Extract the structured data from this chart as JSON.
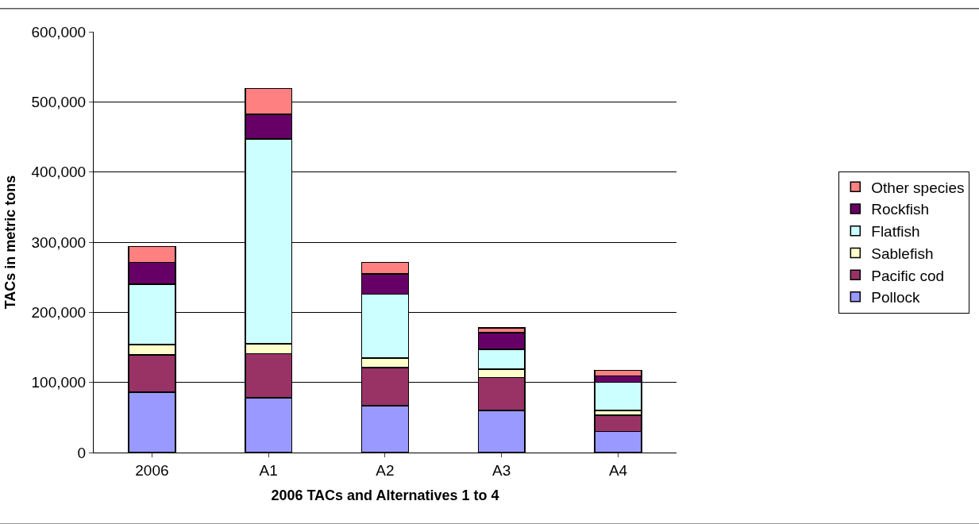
{
  "chart_data": {
    "type": "bar",
    "stacked": true,
    "xlabel": "2006 TACs and Alternatives 1 to 4",
    "ylabel": "TACs in metric tons",
    "categories": [
      "2006",
      "A1",
      "A2",
      "A3",
      "A4"
    ],
    "series": [
      {
        "name": "Pollock",
        "color": "#9999ff",
        "values": [
          86000,
          78000,
          67000,
          60000,
          30000
        ]
      },
      {
        "name": "Pacific cod",
        "color": "#993366",
        "values": [
          53000,
          63000,
          54000,
          47000,
          23000
        ]
      },
      {
        "name": "Sablefish",
        "color": "#ffffcc",
        "values": [
          15000,
          14000,
          14000,
          12000,
          7000
        ]
      },
      {
        "name": "Flatfish",
        "color": "#ccffff",
        "values": [
          86000,
          292000,
          91000,
          28000,
          40000
        ]
      },
      {
        "name": "Rockfish",
        "color": "#660066",
        "values": [
          31000,
          35000,
          29000,
          24000,
          9000
        ]
      },
      {
        "name": "Other species",
        "color": "#ff8080",
        "values": [
          23000,
          37000,
          16000,
          7000,
          8000
        ]
      }
    ],
    "ylim": [
      0,
      600000
    ],
    "yticks": [
      {
        "value": 0,
        "label": "0"
      },
      {
        "value": 100000,
        "label": "100,000"
      },
      {
        "value": 200000,
        "label": "200,000"
      },
      {
        "value": 300000,
        "label": "300,000"
      },
      {
        "value": 400000,
        "label": "400,000"
      },
      {
        "value": 500000,
        "label": "500,000"
      },
      {
        "value": 600000,
        "label": "600,000"
      }
    ],
    "grid": "y",
    "legend": "right"
  }
}
